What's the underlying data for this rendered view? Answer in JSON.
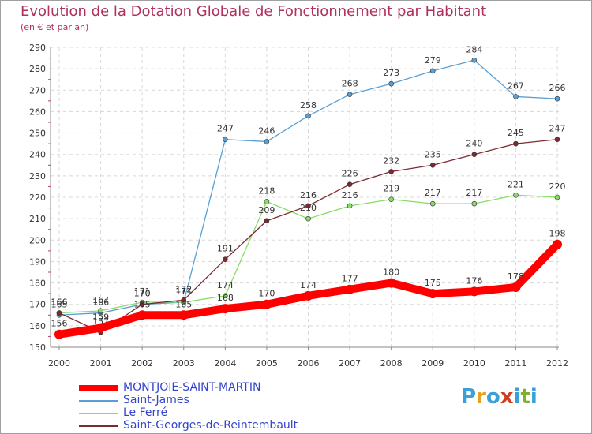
{
  "title": "Evolution de la Dotation Globale de Fonctionnement par Habitant",
  "subtitle": "(en € et par an)",
  "logo": {
    "text": "Proxiti",
    "colors": [
      "#3aa0d8",
      "#e8a020",
      "#3aa0d8",
      "#d04020",
      "#3aa0d8",
      "#80b030",
      "#3aa0d8"
    ]
  },
  "chart_data": {
    "type": "line",
    "x": [
      "2000",
      "2001",
      "2002",
      "2003",
      "2004",
      "2005",
      "2006",
      "2007",
      "2008",
      "2009",
      "2010",
      "2011",
      "2012"
    ],
    "ylim": [
      150,
      290
    ],
    "yticks": [
      150,
      160,
      170,
      180,
      190,
      200,
      210,
      220,
      230,
      240,
      250,
      260,
      270,
      280,
      290
    ],
    "grid": true,
    "legend_position": "bottom-left",
    "series": [
      {
        "name": "MONTJOIE-SAINT-MARTIN",
        "color": "#ff0000",
        "width": 10,
        "values": [
          156,
          159,
          165,
          165,
          168,
          170,
          174,
          177,
          180,
          175,
          176,
          178,
          198
        ],
        "labels": [
          "156",
          "159",
          "165",
          "165",
          "168",
          "170",
          "174",
          "177",
          "180",
          "175",
          "176",
          "178",
          "198"
        ]
      },
      {
        "name": "Saint-James",
        "color": "#5a9fd4",
        "width": 1.3,
        "values": [
          165,
          166,
          170,
          171,
          247,
          246,
          258,
          268,
          273,
          279,
          284,
          267,
          266
        ],
        "labels": [
          "165",
          "166",
          "170",
          "171",
          "247",
          "246",
          "258",
          "268",
          "273",
          "279",
          "284",
          "267",
          "266"
        ]
      },
      {
        "name": "Le Ferré",
        "color": "#88dd66",
        "width": 1.3,
        "values": [
          166,
          167,
          171,
          171,
          174,
          218,
          210,
          216,
          219,
          217,
          217,
          221,
          220
        ],
        "labels": [
          "166",
          "167",
          "171",
          "171",
          "174",
          "218",
          "210",
          "216",
          "219",
          "217",
          "217",
          "221",
          "220"
        ]
      },
      {
        "name": "Saint-Georges-de-Reintembault",
        "color": "#7a2a30",
        "width": 1.3,
        "values": [
          166,
          157,
          170,
          172,
          191,
          209,
          216,
          226,
          232,
          235,
          240,
          245,
          247
        ],
        "labels": [
          "166",
          "157",
          "170",
          "172",
          "191",
          "209",
          "216",
          "226",
          "232",
          "235",
          "240",
          "245",
          "247"
        ]
      }
    ]
  }
}
